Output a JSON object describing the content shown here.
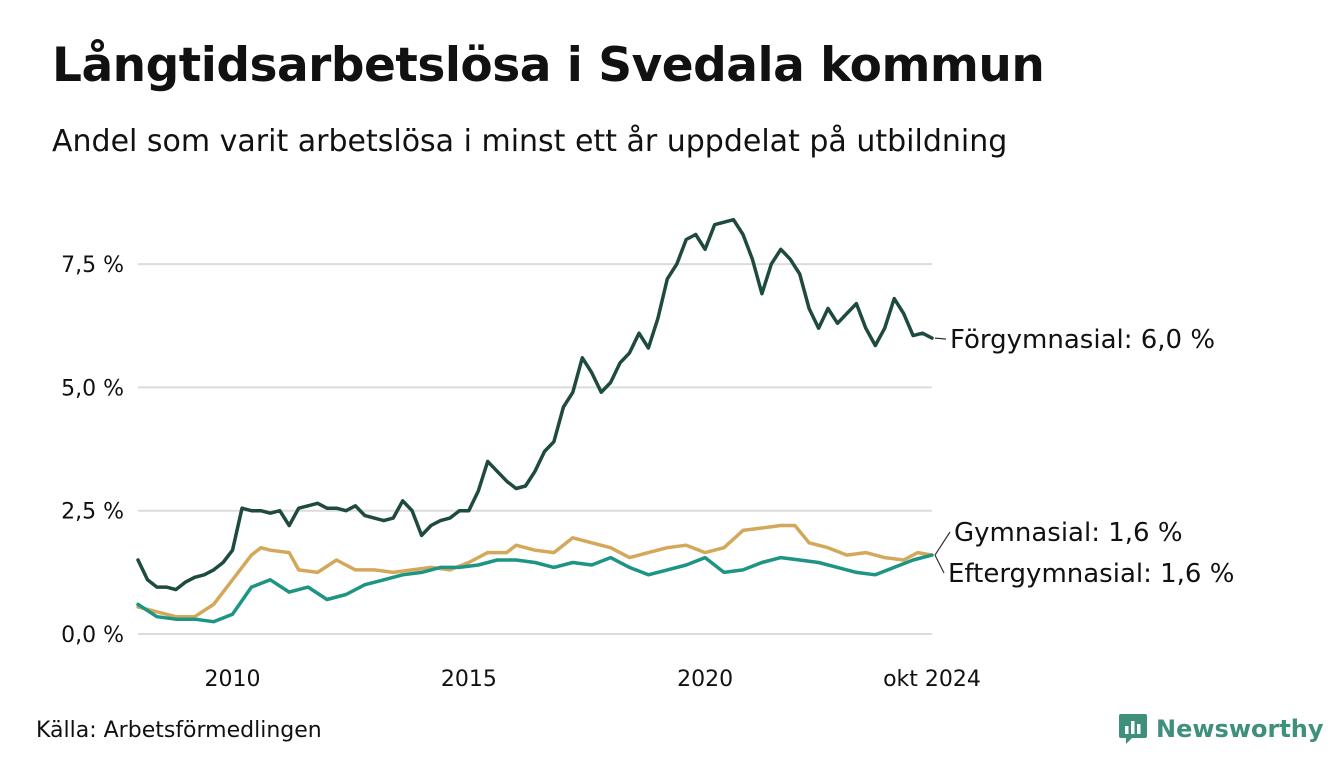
{
  "title": "Långtidsarbetslösa i Svedala kommun",
  "subtitle": "Andel som varit arbetslösa i minst ett år uppdelat på utbildning",
  "source": "Källa: Arbetsförmedlingen",
  "brand": {
    "name": "Newsworthy",
    "icon": "newsworthy-logo-icon",
    "color": "#3f8f7d"
  },
  "chart_data": {
    "type": "line",
    "title": "Långtidsarbetslösa i Svedala kommun",
    "subtitle": "Andel som varit arbetslösa i minst ett år uppdelat på utbildning",
    "xlabel": "",
    "ylabel": "",
    "x_range": [
      2008.0,
      2024.8
    ],
    "ylim": [
      0,
      8.8
    ],
    "y_ticks": [
      {
        "value": 0,
        "label": "0,0 %"
      },
      {
        "value": 2.5,
        "label": "2,5 %"
      },
      {
        "value": 5.0,
        "label": "5,0 %"
      },
      {
        "value": 7.5,
        "label": "7,5 %"
      }
    ],
    "x_ticks": [
      {
        "value": 2010,
        "label": "2010"
      },
      {
        "value": 2015,
        "label": "2015"
      },
      {
        "value": 2020,
        "label": "2020"
      },
      {
        "value": 2024.8,
        "label": "okt 2024"
      }
    ],
    "grid": true,
    "legend": "direct labels at line ends (right)",
    "series": [
      {
        "name": "Förgymnasial",
        "end_label": "Förgymnasial: 6,0 %",
        "color": "#1f4a40",
        "points": [
          [
            2008.0,
            1.5
          ],
          [
            2008.2,
            1.1
          ],
          [
            2008.4,
            0.95
          ],
          [
            2008.6,
            0.95
          ],
          [
            2008.8,
            0.9
          ],
          [
            2009.0,
            1.05
          ],
          [
            2009.2,
            1.15
          ],
          [
            2009.4,
            1.2
          ],
          [
            2009.6,
            1.3
          ],
          [
            2009.8,
            1.45
          ],
          [
            2010.0,
            1.7
          ],
          [
            2010.2,
            2.55
          ],
          [
            2010.4,
            2.5
          ],
          [
            2010.6,
            2.5
          ],
          [
            2010.8,
            2.45
          ],
          [
            2011.0,
            2.5
          ],
          [
            2011.2,
            2.2
          ],
          [
            2011.4,
            2.55
          ],
          [
            2011.6,
            2.6
          ],
          [
            2011.8,
            2.65
          ],
          [
            2012.0,
            2.55
          ],
          [
            2012.2,
            2.55
          ],
          [
            2012.4,
            2.5
          ],
          [
            2012.6,
            2.6
          ],
          [
            2012.8,
            2.4
          ],
          [
            2013.0,
            2.35
          ],
          [
            2013.2,
            2.3
          ],
          [
            2013.4,
            2.35
          ],
          [
            2013.6,
            2.7
          ],
          [
            2013.8,
            2.5
          ],
          [
            2014.0,
            2.0
          ],
          [
            2014.2,
            2.2
          ],
          [
            2014.4,
            2.3
          ],
          [
            2014.6,
            2.35
          ],
          [
            2014.8,
            2.5
          ],
          [
            2015.0,
            2.5
          ],
          [
            2015.2,
            2.9
          ],
          [
            2015.4,
            3.5
          ],
          [
            2015.6,
            3.3
          ],
          [
            2015.8,
            3.1
          ],
          [
            2016.0,
            2.95
          ],
          [
            2016.2,
            3.0
          ],
          [
            2016.4,
            3.3
          ],
          [
            2016.6,
            3.7
          ],
          [
            2016.8,
            3.9
          ],
          [
            2017.0,
            4.6
          ],
          [
            2017.2,
            4.9
          ],
          [
            2017.4,
            5.6
          ],
          [
            2017.6,
            5.3
          ],
          [
            2017.8,
            4.9
          ],
          [
            2018.0,
            5.1
          ],
          [
            2018.2,
            5.5
          ],
          [
            2018.4,
            5.7
          ],
          [
            2018.6,
            6.1
          ],
          [
            2018.8,
            5.8
          ],
          [
            2019.0,
            6.4
          ],
          [
            2019.2,
            7.2
          ],
          [
            2019.4,
            7.5
          ],
          [
            2019.6,
            8.0
          ],
          [
            2019.8,
            8.1
          ],
          [
            2020.0,
            7.8
          ],
          [
            2020.2,
            8.3
          ],
          [
            2020.4,
            8.35
          ],
          [
            2020.6,
            8.4
          ],
          [
            2020.8,
            8.1
          ],
          [
            2021.0,
            7.6
          ],
          [
            2021.2,
            6.9
          ],
          [
            2021.4,
            7.5
          ],
          [
            2021.6,
            7.8
          ],
          [
            2021.8,
            7.6
          ],
          [
            2022.0,
            7.3
          ],
          [
            2022.2,
            6.6
          ],
          [
            2022.4,
            6.2
          ],
          [
            2022.6,
            6.6
          ],
          [
            2022.8,
            6.3
          ],
          [
            2023.0,
            6.5
          ],
          [
            2023.2,
            6.7
          ],
          [
            2023.4,
            6.2
          ],
          [
            2023.6,
            5.85
          ],
          [
            2023.8,
            6.2
          ],
          [
            2024.0,
            6.8
          ],
          [
            2024.2,
            6.5
          ],
          [
            2024.4,
            6.05
          ],
          [
            2024.6,
            6.1
          ],
          [
            2024.8,
            6.0
          ]
        ]
      },
      {
        "name": "Gymnasial",
        "end_label": "Gymnasial: 1,6 %",
        "color": "#d4a85a",
        "points": [
          [
            2008.0,
            0.55
          ],
          [
            2008.4,
            0.45
          ],
          [
            2008.8,
            0.35
          ],
          [
            2009.2,
            0.35
          ],
          [
            2009.6,
            0.6
          ],
          [
            2010.0,
            1.1
          ],
          [
            2010.4,
            1.6
          ],
          [
            2010.6,
            1.75
          ],
          [
            2010.8,
            1.7
          ],
          [
            2011.2,
            1.65
          ],
          [
            2011.4,
            1.3
          ],
          [
            2011.8,
            1.25
          ],
          [
            2012.2,
            1.5
          ],
          [
            2012.6,
            1.3
          ],
          [
            2013.0,
            1.3
          ],
          [
            2013.4,
            1.25
          ],
          [
            2013.8,
            1.3
          ],
          [
            2014.2,
            1.35
          ],
          [
            2014.6,
            1.3
          ],
          [
            2015.0,
            1.45
          ],
          [
            2015.4,
            1.65
          ],
          [
            2015.8,
            1.65
          ],
          [
            2016.0,
            1.8
          ],
          [
            2016.4,
            1.7
          ],
          [
            2016.8,
            1.65
          ],
          [
            2017.2,
            1.95
          ],
          [
            2017.6,
            1.85
          ],
          [
            2018.0,
            1.75
          ],
          [
            2018.4,
            1.55
          ],
          [
            2018.8,
            1.65
          ],
          [
            2019.2,
            1.75
          ],
          [
            2019.6,
            1.8
          ],
          [
            2020.0,
            1.65
          ],
          [
            2020.4,
            1.75
          ],
          [
            2020.8,
            2.1
          ],
          [
            2021.2,
            2.15
          ],
          [
            2021.6,
            2.2
          ],
          [
            2021.9,
            2.2
          ],
          [
            2022.2,
            1.85
          ],
          [
            2022.6,
            1.75
          ],
          [
            2023.0,
            1.6
          ],
          [
            2023.4,
            1.65
          ],
          [
            2023.8,
            1.55
          ],
          [
            2024.2,
            1.5
          ],
          [
            2024.5,
            1.65
          ],
          [
            2024.8,
            1.6
          ]
        ]
      },
      {
        "name": "Eftergymnasial",
        "end_label": "Eftergymnasial: 1,6 %",
        "color": "#1e9584",
        "points": [
          [
            2008.0,
            0.6
          ],
          [
            2008.4,
            0.35
          ],
          [
            2008.8,
            0.3
          ],
          [
            2009.2,
            0.3
          ],
          [
            2009.6,
            0.25
          ],
          [
            2010.0,
            0.4
          ],
          [
            2010.4,
            0.95
          ],
          [
            2010.8,
            1.1
          ],
          [
            2011.2,
            0.85
          ],
          [
            2011.6,
            0.95
          ],
          [
            2012.0,
            0.7
          ],
          [
            2012.4,
            0.8
          ],
          [
            2012.8,
            1.0
          ],
          [
            2013.2,
            1.1
          ],
          [
            2013.6,
            1.2
          ],
          [
            2014.0,
            1.25
          ],
          [
            2014.4,
            1.35
          ],
          [
            2014.8,
            1.35
          ],
          [
            2015.2,
            1.4
          ],
          [
            2015.6,
            1.5
          ],
          [
            2016.0,
            1.5
          ],
          [
            2016.4,
            1.45
          ],
          [
            2016.8,
            1.35
          ],
          [
            2017.2,
            1.45
          ],
          [
            2017.6,
            1.4
          ],
          [
            2018.0,
            1.55
          ],
          [
            2018.4,
            1.35
          ],
          [
            2018.8,
            1.2
          ],
          [
            2019.2,
            1.3
          ],
          [
            2019.6,
            1.4
          ],
          [
            2020.0,
            1.55
          ],
          [
            2020.4,
            1.25
          ],
          [
            2020.8,
            1.3
          ],
          [
            2021.2,
            1.45
          ],
          [
            2021.6,
            1.55
          ],
          [
            2022.0,
            1.5
          ],
          [
            2022.4,
            1.45
          ],
          [
            2022.8,
            1.35
          ],
          [
            2023.2,
            1.25
          ],
          [
            2023.6,
            1.2
          ],
          [
            2024.0,
            1.35
          ],
          [
            2024.4,
            1.5
          ],
          [
            2024.8,
            1.6
          ]
        ]
      }
    ]
  }
}
